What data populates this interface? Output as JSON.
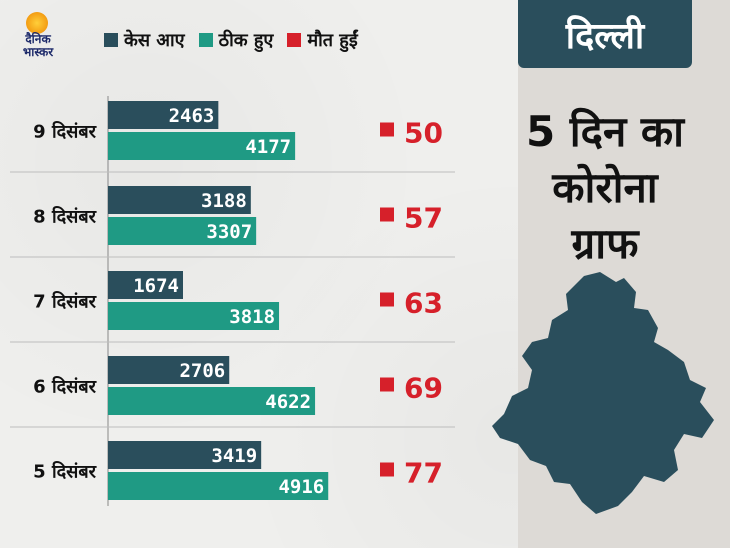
{
  "brand": {
    "line1": "दैनिक",
    "line2": "भास्कर"
  },
  "side_tab": "दिल्ली",
  "side_title_lines": [
    "5 दिन का",
    "कोरोना",
    "ग्राफ"
  ],
  "colors": {
    "cases": "#2a4e5c",
    "recovered": "#1f9a84",
    "deaths": "#d6202a",
    "panel": "#2a4e5c"
  },
  "map_icon": "delhi-map-icon",
  "chart_data": {
    "type": "bar",
    "orientation": "horizontal",
    "categories": [
      "9 दिसंबर",
      "8 दिसंबर",
      "7 दिसंबर",
      "6 दिसंबर",
      "5 दिसंबर"
    ],
    "series": [
      {
        "name": "केस आए",
        "values": [
          2463,
          3188,
          1674,
          2706,
          3419
        ]
      },
      {
        "name": "ठीक हुए",
        "values": [
          4177,
          3307,
          3818,
          4622,
          4916
        ]
      },
      {
        "name": "मौत हुईं",
        "values": [
          50,
          57,
          63,
          69,
          77
        ]
      }
    ],
    "deaths_shown_as": "labels",
    "grid": false,
    "legend_position": "top"
  }
}
